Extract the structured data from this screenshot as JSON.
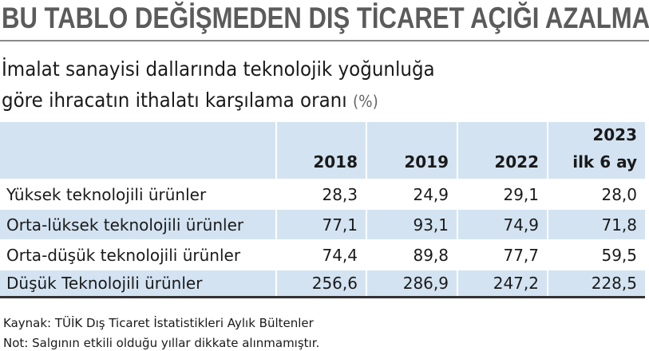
{
  "header": {
    "title": "BU TABLO DEĞİŞMEDEN DIŞ TİCARET AÇIĞI AZALMAZ"
  },
  "subtitle": {
    "line1": "İmalat sanayisi dallarında teknolojik yoğunluğa",
    "line2": "göre ihracatın ithalatı karşılama oranı",
    "unit": "(%)"
  },
  "table": {
    "header": [
      [
        "2018"
      ],
      [
        "2019"
      ],
      [
        "2022"
      ],
      [
        "2023",
        "ilk 6 ay"
      ]
    ],
    "rows": [
      {
        "label": "Yüksek teknolojili ürünler",
        "values": [
          "28,3",
          "24,9",
          "29,1",
          "28,0"
        ]
      },
      {
        "label": "Orta-lüksek teknolojili ürünler",
        "values": [
          "77,1",
          "93,1",
          "74,9",
          "71,8"
        ]
      },
      {
        "label": "Orta-düşük teknolojili ürünler",
        "values": [
          "74,4",
          "89,8",
          "77,7",
          "59,5"
        ]
      },
      {
        "label": "Düşük Teknolojili ürünler",
        "values": [
          "256,6",
          "286,9",
          "247,2",
          "228,5"
        ]
      }
    ]
  },
  "footer": {
    "notes": [
      "Kaynak: TÜİK Dış Ticaret İstatistikleri Aylık Bültenler",
      "Not: Salgının etkili olduğu yıllar dikkate alınmamıştır."
    ]
  }
}
